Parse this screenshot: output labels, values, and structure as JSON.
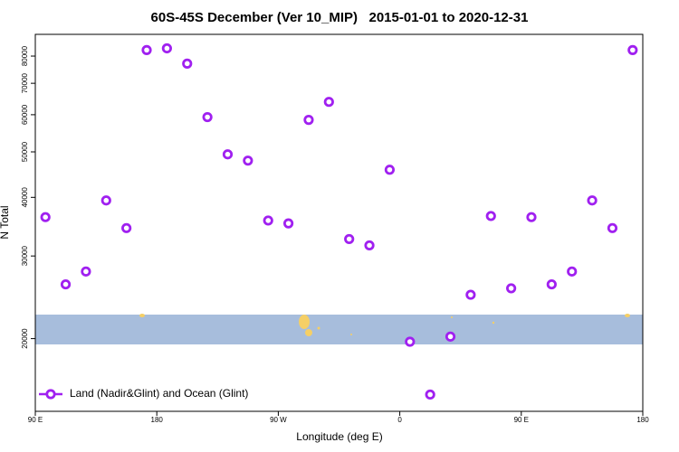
{
  "chart_data": {
    "type": "scatter",
    "title": "60S-45S December (Ver 10_MIP)   2015-01-01 to 2020-12-31",
    "xlabel": "Longitude (deg E)",
    "ylabel": "N Total",
    "xlim": [
      90,
      540
    ],
    "ylim": [
      14000,
      89000
    ],
    "log_y": true,
    "xticks": [
      {
        "value": 90,
        "label": "90 E"
      },
      180,
      {
        "value": 270,
        "label": "90 W"
      },
      {
        "value": 360,
        "label": "0"
      },
      {
        "value": 450,
        "label": "90 E"
      },
      {
        "value": 540,
        "label": "180"
      }
    ],
    "yticks": [
      20000,
      30000,
      40000,
      50000,
      60000,
      70000,
      80000
    ],
    "legend": "bottom-left",
    "series": [
      {
        "name": "Land (Nadir&Glint) and Ocean (Glint)",
        "color": "#a020f0",
        "x": [
          97.5,
          112.5,
          127.5,
          142.5,
          157.5,
          172.5,
          187.5,
          202.5,
          217.5,
          232.5,
          247.5,
          262.5,
          277.5,
          292.5,
          307.5,
          322.5,
          337.5,
          352.5,
          367.5,
          382.5,
          397.5,
          412.5,
          427.5,
          442.5,
          457.5,
          472.5,
          487.5,
          502.5,
          517.5,
          532.5
        ],
        "values": [
          36300,
          26100,
          27800,
          39400,
          34400,
          82400,
          83100,
          77100,
          59300,
          49400,
          47900,
          35700,
          35200,
          58500,
          63900,
          32600,
          31600,
          45800,
          19700,
          15200,
          20200,
          24800,
          36500,
          25600,
          36300,
          26100,
          27800,
          39400,
          34400,
          82400
        ]
      }
    ]
  }
}
